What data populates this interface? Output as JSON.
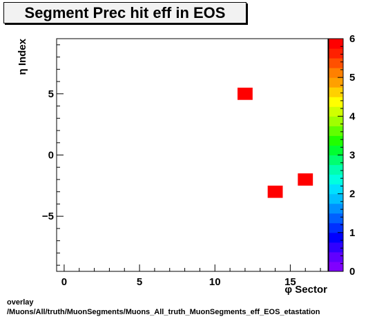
{
  "chart_data": {
    "type": "heatmap",
    "title": "Segment Prec hit eff in EOS",
    "xlabel": "φ Sector",
    "ylabel": "η Index",
    "xlim": [
      -0.5,
      17.5
    ],
    "ylim": [
      -9.5,
      9.5
    ],
    "x_ticks": [
      0,
      5,
      10,
      15
    ],
    "x_tick_labels": [
      "0",
      "5",
      "10",
      "15"
    ],
    "y_ticks": [
      -5,
      0,
      5
    ],
    "y_tick_labels": [
      "−5",
      "0",
      "5"
    ],
    "z_range": [
      0,
      6
    ],
    "z_ticks": [
      0,
      1,
      2,
      3,
      4,
      5,
      6
    ],
    "z_tick_labels": [
      "0",
      "1",
      "2",
      "3",
      "4",
      "5",
      "6"
    ],
    "cells": [
      {
        "x": 12,
        "y": 5,
        "value": 6
      },
      {
        "x": 14,
        "y": -3,
        "value": 6
      },
      {
        "x": 16,
        "y": -2,
        "value": 6
      }
    ],
    "colors": {
      "cell": "#ff0000",
      "palette": [
        "#8000ff",
        "#6000ff",
        "#3000ff",
        "#0000ff",
        "#0030ff",
        "#0060ff",
        "#0090ff",
        "#00c0ff",
        "#00e0ff",
        "#00ffe0",
        "#00ffb0",
        "#00ff70",
        "#00ff30",
        "#20ff00",
        "#60ff00",
        "#a0ff00",
        "#d0ff00",
        "#ffff00",
        "#ffd000",
        "#ffa000",
        "#ff8000",
        "#ff5000",
        "#ff2000",
        "#ff0000"
      ]
    }
  },
  "footer": {
    "line1": "overlay",
    "line2": "/Muons/All/truth/MuonSegments/Muons_All_truth_MuonSegments_eff_EOS_etastation"
  }
}
